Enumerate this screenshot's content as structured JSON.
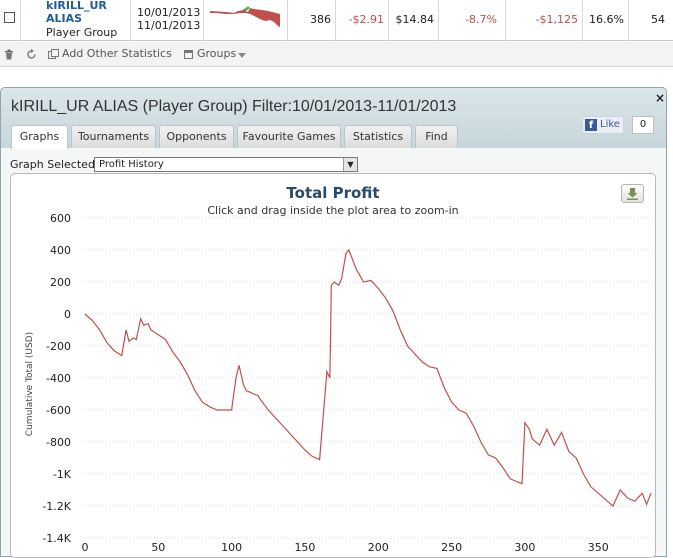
{
  "summary_row": {
    "player_name": "kIRILL_UR ALIAS",
    "player_type": "Player Group",
    "date_from": "10/01/2013",
    "date_to": "11/01/2013",
    "hands": "386",
    "bb_per_100": "-$2.91",
    "rake": "$14.84",
    "win_pct": "-8.7%",
    "total_won": "-$1,125",
    "vpip": "16.6%",
    "last_col": "54"
  },
  "toolbar": {
    "add_stats_label": "Add Other Statistics",
    "groups_label": "Groups"
  },
  "panel": {
    "title": "kIRILL_UR ALIAS (Player Group) Filter:10/01/2013-11/01/2013",
    "close_label": "×",
    "fb_like_label": "Like",
    "fb_count": "0",
    "tabs": [
      {
        "label": "Graphs",
        "active": true
      },
      {
        "label": "Tournaments",
        "active": false
      },
      {
        "label": "Opponents",
        "active": false
      },
      {
        "label": "Favourite Games",
        "active": false
      },
      {
        "label": "Statistics",
        "active": false
      },
      {
        "label": "Find",
        "active": false
      }
    ],
    "graph_selected_label": "Graph Selected:",
    "graph_selected_value": "Profit History"
  },
  "icons": {
    "download": "download-icon",
    "trash": "trash-icon",
    "refresh": "refresh-icon",
    "add": "add-stats-icon",
    "groups": "groups-icon"
  },
  "colors": {
    "line": "#c0504d",
    "sparkline_pos": "#4caf50",
    "title": "#2a4a6b"
  },
  "chart_data": {
    "type": "line",
    "title": "Total Profit",
    "subtitle": "Click and drag inside the plot area to zoom-in",
    "xlabel": "",
    "ylabel": "Cumulative Total (USD)",
    "xlim": [
      0,
      386
    ],
    "ylim": [
      -1400,
      600
    ],
    "x_ticks": [
      "0",
      "50",
      "100",
      "150",
      "200",
      "250",
      "300",
      "350"
    ],
    "y_ticks": [
      "600",
      "400",
      "200",
      "0",
      "-200",
      "-400",
      "-600",
      "-800",
      "-1K",
      "-1.2K",
      "-1.4K"
    ],
    "grid": true,
    "series": [
      {
        "x": [
          0,
          5,
          10,
          15,
          20,
          25,
          28,
          30,
          33,
          35,
          38,
          40,
          43,
          45,
          50,
          55,
          60,
          65,
          70,
          75,
          80,
          85,
          90,
          95,
          100,
          103,
          105,
          108,
          110,
          113,
          115,
          118,
          120,
          125,
          130,
          135,
          140,
          145,
          150,
          155,
          160,
          165,
          167,
          168,
          170,
          173,
          175,
          178,
          180,
          185,
          190,
          195,
          200,
          205,
          210,
          215,
          220,
          225,
          230,
          235,
          240,
          245,
          250,
          255,
          260,
          265,
          270,
          275,
          280,
          285,
          290,
          295,
          298,
          300,
          303,
          305,
          310,
          315,
          320,
          325,
          330,
          335,
          340,
          345,
          350,
          355,
          360,
          365,
          370,
          375,
          380,
          383,
          386
        ],
        "y": [
          0,
          -40,
          -100,
          -180,
          -230,
          -260,
          -100,
          -170,
          -150,
          -160,
          -30,
          -70,
          -60,
          -100,
          -130,
          -160,
          -240,
          -300,
          -380,
          -480,
          -550,
          -580,
          -600,
          -600,
          -600,
          -400,
          -320,
          -440,
          -480,
          -490,
          -500,
          -510,
          -540,
          -600,
          -650,
          -700,
          -750,
          -800,
          -850,
          -890,
          -910,
          -360,
          -400,
          180,
          200,
          180,
          220,
          380,
          400,
          280,
          200,
          210,
          160,
          100,
          20,
          -100,
          -200,
          -250,
          -300,
          -330,
          -340,
          -460,
          -550,
          -600,
          -620,
          -700,
          -800,
          -880,
          -900,
          -960,
          -1030,
          -1050,
          -1060,
          -680,
          -720,
          -780,
          -820,
          -720,
          -820,
          -740,
          -860,
          -900,
          -1000,
          -1080,
          -1120,
          -1160,
          -1200,
          -1100,
          -1150,
          -1170,
          -1120,
          -1190,
          -1120
        ]
      }
    ]
  }
}
